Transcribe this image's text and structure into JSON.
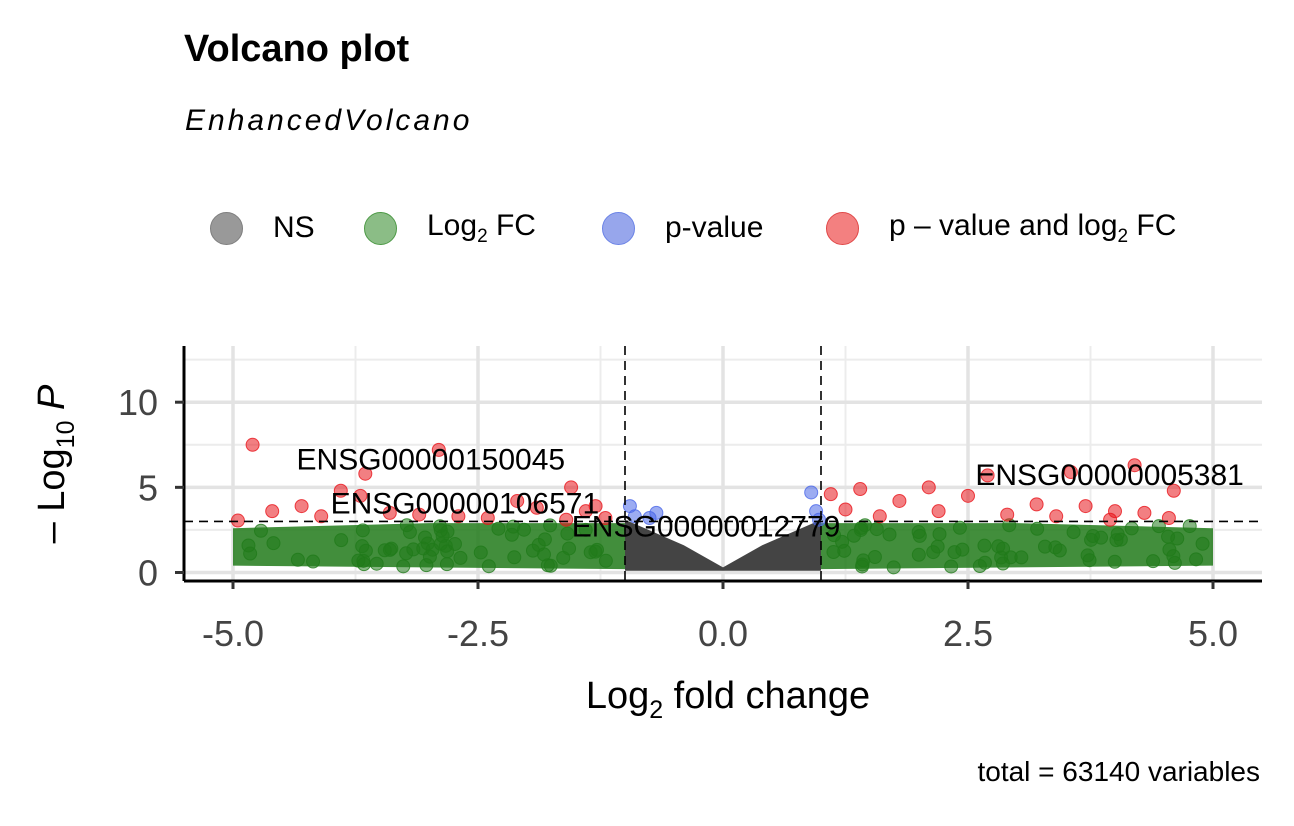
{
  "title": "Volcano plot",
  "subtitle": "EnhancedVolcano",
  "caption": "total = 63140 variables",
  "legend": [
    {
      "label_main": "NS",
      "label_sub": "",
      "label_suffix": "",
      "color": "#7f7f7f"
    },
    {
      "label_main": "Log",
      "label_sub": "2",
      "label_suffix": " FC",
      "color": "#4e9a47"
    },
    {
      "label_main": "p-value",
      "label_sub": "",
      "label_suffix": "",
      "color": "#6b83e6"
    },
    {
      "label_main": "p – value and log",
      "label_sub": "2",
      "label_suffix": " FC",
      "color": "#ef3b3b"
    }
  ],
  "chart_data": {
    "type": "scatter",
    "title": "Volcano plot",
    "subtitle": "EnhancedVolcano",
    "xlabel_main": "Log",
    "xlabel_sub": "2",
    "xlabel_suffix": " fold change",
    "ylabel_main": "– Log",
    "ylabel_sub": "10",
    "ylabel_suffix": " P",
    "xlim": [
      -5.5,
      5.5
    ],
    "ylim": [
      -0.5,
      13.3
    ],
    "xticks": [
      -5.0,
      -2.5,
      0.0,
      2.5,
      5.0
    ],
    "xtick_labels": [
      "-5.0",
      "-2.5",
      "0.0",
      "2.5",
      "5.0"
    ],
    "yticks": [
      0,
      5,
      10
    ],
    "ytick_labels": [
      "0",
      "5",
      "10"
    ],
    "grid": true,
    "thresholds": {
      "log2fc": [
        -1,
        1
      ],
      "neglog10p": 3.0
    },
    "colors": {
      "NS": "#3a3a3a",
      "Log2FC": "#217a1a",
      "pvalue": "#4a67e8",
      "both": "#e8151b"
    },
    "labeled_points": [
      {
        "label": "ENSG00000150045",
        "x": -2.9,
        "y": 7.1
      },
      {
        "label": "ENSG00000106571",
        "x": -4.8,
        "y": 3.0
      },
      {
        "label": "ENSG00000012779",
        "x": 0.6,
        "y": 3.3
      },
      {
        "label": "ENSG00000005381",
        "x": 4.2,
        "y": 6.2
      }
    ],
    "significant_points": [
      {
        "x": -4.8,
        "y": 7.5
      },
      {
        "x": -4.95,
        "y": 3.05
      },
      {
        "x": -4.6,
        "y": 3.6
      },
      {
        "x": -4.3,
        "y": 3.9
      },
      {
        "x": -3.9,
        "y": 4.8
      },
      {
        "x": -3.7,
        "y": 4.5
      },
      {
        "x": -3.65,
        "y": 5.8
      },
      {
        "x": -3.4,
        "y": 3.5
      },
      {
        "x": -2.9,
        "y": 7.2
      },
      {
        "x": -2.7,
        "y": 3.3
      },
      {
        "x": -2.1,
        "y": 4.2
      },
      {
        "x": -1.9,
        "y": 3.8
      },
      {
        "x": -1.55,
        "y": 5.0
      },
      {
        "x": -1.4,
        "y": 3.6
      },
      {
        "x": -1.3,
        "y": 3.9
      },
      {
        "x": -1.2,
        "y": 3.2
      },
      {
        "x": -1.6,
        "y": 3.1
      },
      {
        "x": -2.4,
        "y": 3.2
      },
      {
        "x": -3.1,
        "y": 3.4
      },
      {
        "x": -4.1,
        "y": 3.3
      },
      {
        "x": 1.1,
        "y": 4.6
      },
      {
        "x": 1.25,
        "y": 3.7
      },
      {
        "x": 1.4,
        "y": 4.9
      },
      {
        "x": 1.6,
        "y": 3.3
      },
      {
        "x": 1.8,
        "y": 4.2
      },
      {
        "x": 2.1,
        "y": 5.0
      },
      {
        "x": 2.2,
        "y": 3.6
      },
      {
        "x": 2.5,
        "y": 4.5
      },
      {
        "x": 2.7,
        "y": 5.7
      },
      {
        "x": 2.9,
        "y": 3.4
      },
      {
        "x": 3.2,
        "y": 4.0
      },
      {
        "x": 3.4,
        "y": 3.3
      },
      {
        "x": 3.55,
        "y": 5.9
      },
      {
        "x": 3.7,
        "y": 3.9
      },
      {
        "x": 4.0,
        "y": 3.6
      },
      {
        "x": 4.2,
        "y": 6.3
      },
      {
        "x": 4.3,
        "y": 3.5
      },
      {
        "x": 4.55,
        "y": 3.2
      },
      {
        "x": 4.6,
        "y": 4.8
      },
      {
        "x": 3.95,
        "y": 3.1
      }
    ],
    "pvalue_only_points": [
      {
        "x": -0.95,
        "y": 3.9
      },
      {
        "x": -0.9,
        "y": 3.3
      },
      {
        "x": -0.75,
        "y": 3.2
      },
      {
        "x": -0.68,
        "y": 3.5
      },
      {
        "x": 0.9,
        "y": 4.7
      },
      {
        "x": 0.95,
        "y": 3.6
      },
      {
        "x": 0.98,
        "y": 3.1
      }
    ]
  }
}
